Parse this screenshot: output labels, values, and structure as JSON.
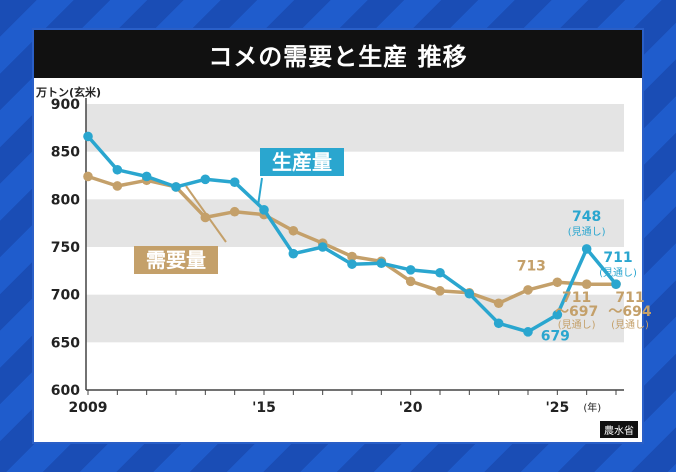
{
  "title": "コメの需要と生産 推移",
  "source": "農水省",
  "colors": {
    "production": "#2aa6cf",
    "demand": "#c4a06a",
    "band": "#e4e4e4",
    "text": "#222222"
  },
  "chart_data": {
    "type": "line",
    "title": "コメの需要と生産 推移",
    "ylabel": "万トン(玄米)",
    "xlabel": "",
    "x_unit_label": "(年)",
    "ylim": [
      600,
      900
    ],
    "yticks": [
      600,
      650,
      700,
      750,
      800,
      850,
      900
    ],
    "xlim": [
      2009,
      2027
    ],
    "xticks": [
      {
        "x": 2009,
        "label": "2009"
      },
      {
        "x": 2015,
        "label": "'15"
      },
      {
        "x": 2020,
        "label": "'20"
      },
      {
        "x": 2025,
        "label": "'25"
      }
    ],
    "grid": "alternating horizontal bands",
    "series": [
      {
        "name": "生産量",
        "color": "#2aa6cf",
        "points": [
          [
            2009,
            866
          ],
          [
            2010,
            831
          ],
          [
            2011,
            824
          ],
          [
            2012,
            813
          ],
          [
            2013,
            821
          ],
          [
            2014,
            818
          ],
          [
            2015,
            789
          ],
          [
            2016,
            743
          ],
          [
            2017,
            750
          ],
          [
            2018,
            732
          ],
          [
            2019,
            733
          ],
          [
            2020,
            726
          ],
          [
            2021,
            723
          ],
          [
            2022,
            701
          ],
          [
            2023,
            670
          ],
          [
            2024,
            661
          ],
          [
            2025,
            679
          ],
          [
            2026,
            748
          ],
          [
            2027,
            711
          ]
        ]
      },
      {
        "name": "需要量",
        "color": "#c4a06a",
        "points": [
          [
            2009,
            824
          ],
          [
            2010,
            814
          ],
          [
            2011,
            820
          ],
          [
            2012,
            813
          ],
          [
            2013,
            781
          ],
          [
            2014,
            787
          ],
          [
            2015,
            784
          ],
          [
            2016,
            767
          ],
          [
            2017,
            754
          ],
          [
            2018,
            740
          ],
          [
            2019,
            735
          ],
          [
            2020,
            714
          ],
          [
            2021,
            704
          ],
          [
            2022,
            702
          ],
          [
            2023,
            691
          ],
          [
            2024,
            705
          ],
          [
            2025,
            713
          ],
          [
            2026,
            711
          ],
          [
            2027,
            711
          ]
        ]
      }
    ],
    "annotations": [
      {
        "series": "生産量",
        "x": 2026,
        "y": 748,
        "text": "748",
        "sub": "(見通し)"
      },
      {
        "series": "生産量",
        "x": 2027,
        "y": 711,
        "text": "711",
        "sub": "(見通し)"
      },
      {
        "series": "生産量",
        "x": 2025,
        "y": 679,
        "text": "679",
        "sub": ""
      },
      {
        "series": "需要量",
        "x": 2025,
        "y": 713,
        "text": "713",
        "sub": ""
      },
      {
        "series": "需要量",
        "x": 2026,
        "y": 711,
        "text": "711",
        "sub": "〜697",
        "sub2": "(見通し)"
      },
      {
        "series": "需要量",
        "x": 2027,
        "y": 711,
        "text": "711",
        "sub": "〜694",
        "sub2": "(見通し)"
      }
    ]
  }
}
